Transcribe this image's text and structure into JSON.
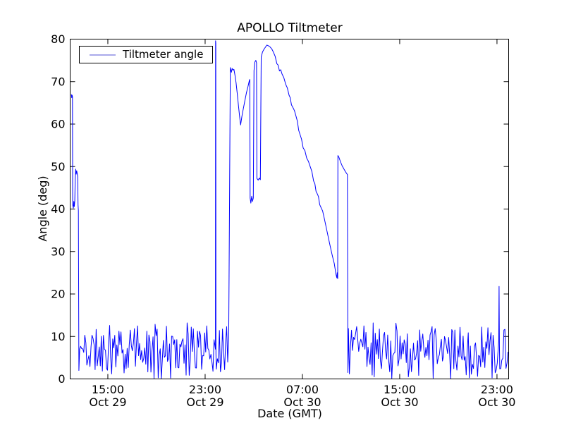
{
  "chart_data": {
    "type": "line",
    "title": "APOLLO Tiltmeter",
    "xlabel": "Date (GMT)",
    "ylabel": "Angle (deg)",
    "ylim": [
      0,
      80
    ],
    "y_ticks": [
      0,
      10,
      20,
      30,
      40,
      50,
      60,
      70,
      80
    ],
    "x_range_hours": [
      0,
      36.06
    ],
    "x_ticks": [
      {
        "t": 3.1,
        "time": "15:00",
        "date": "Oct 29"
      },
      {
        "t": 11.1,
        "time": "23:00",
        "date": "Oct 29"
      },
      {
        "t": 19.1,
        "time": "07:00",
        "date": "Oct 30"
      },
      {
        "t": 27.1,
        "time": "15:00",
        "date": "Oct 30"
      },
      {
        "t": 35.1,
        "time": "23:00",
        "date": "Oct 30"
      }
    ],
    "grid": false,
    "legend": {
      "label": "Tiltmeter angle",
      "position": "upper left",
      "sample_color": "#a9a9ea"
    },
    "line_color": "#0000ff",
    "frame_color": "#000000",
    "noise_band": {
      "min": 0,
      "max": 13.2,
      "step_hours": 0.085
    },
    "series_segments": [
      {
        "kind": "points",
        "name": "left-transient",
        "points": [
          [
            0.1,
            67.0
          ],
          [
            0.13,
            66.2
          ],
          [
            0.16,
            66.8
          ],
          [
            0.19,
            66.4
          ],
          [
            0.21,
            41.0
          ],
          [
            0.26,
            40.2
          ],
          [
            0.3,
            41.8
          ],
          [
            0.34,
            40.6
          ],
          [
            0.38,
            42.0
          ],
          [
            0.42,
            47.2
          ],
          [
            0.46,
            49.4
          ],
          [
            0.5,
            48.2
          ],
          [
            0.54,
            49.0
          ],
          [
            0.58,
            48.4
          ],
          [
            0.62,
            47.6
          ],
          [
            0.65,
            41.0
          ],
          [
            0.68,
            39.6
          ],
          [
            0.72,
            2.0
          ]
        ]
      },
      {
        "kind": "noise",
        "name": "quiet-band-1",
        "t0": 0.78,
        "t1": 11.9,
        "seed": 11
      },
      {
        "kind": "points",
        "name": "spike-1",
        "points": [
          [
            11.95,
            7.0
          ],
          [
            11.96,
            79.6
          ],
          [
            11.975,
            79.0
          ],
          [
            11.99,
            6.0
          ]
        ]
      },
      {
        "kind": "noise",
        "name": "quiet-band-2",
        "t0": 12.02,
        "t1": 13.1,
        "seed": 23
      },
      {
        "kind": "points",
        "name": "tilt-event",
        "jitter": 0.55,
        "points": [
          [
            13.17,
            73.3
          ],
          [
            13.26,
            72.2
          ],
          [
            13.32,
            73.1
          ],
          [
            13.4,
            72.7
          ],
          [
            13.47,
            72.9
          ],
          [
            13.55,
            71.6
          ],
          [
            13.64,
            69.8
          ],
          [
            13.74,
            67.2
          ],
          [
            13.84,
            64.4
          ],
          [
            13.94,
            61.6
          ],
          [
            14.02,
            59.8
          ],
          [
            14.12,
            61.8
          ],
          [
            14.24,
            63.6
          ],
          [
            14.36,
            65.4
          ],
          [
            14.5,
            67.4
          ],
          [
            14.62,
            68.8
          ],
          [
            14.73,
            70.2
          ],
          [
            14.77,
            70.5
          ],
          [
            14.8,
            42.6
          ],
          [
            14.86,
            41.4
          ],
          [
            14.93,
            43.0
          ],
          [
            15.0,
            41.8
          ],
          [
            15.06,
            42.6
          ],
          [
            15.12,
            72.6
          ],
          [
            15.19,
            74.6
          ],
          [
            15.27,
            75.0
          ],
          [
            15.33,
            74.4
          ],
          [
            15.36,
            47.2
          ],
          [
            15.46,
            46.8
          ],
          [
            15.56,
            47.3
          ],
          [
            15.64,
            46.9
          ],
          [
            15.71,
            75.8
          ],
          [
            15.82,
            77.0
          ],
          [
            15.94,
            77.6
          ],
          [
            16.06,
            78.1
          ],
          [
            16.18,
            78.6
          ],
          [
            16.32,
            78.4
          ],
          [
            16.46,
            78.1
          ],
          [
            16.58,
            77.7
          ],
          [
            16.72,
            76.9
          ],
          [
            17.0,
            74.2
          ],
          [
            17.42,
            71.8
          ],
          [
            17.72,
            69.4
          ],
          [
            18.0,
            66.8
          ],
          [
            18.3,
            64.0
          ],
          [
            18.58,
            61.8
          ],
          [
            18.9,
            57.6
          ],
          [
            19.16,
            54.4
          ],
          [
            19.45,
            52.0
          ],
          [
            19.74,
            50.0
          ],
          [
            20.02,
            46.6
          ],
          [
            20.32,
            43.6
          ],
          [
            20.62,
            40.4
          ],
          [
            20.9,
            37.8
          ],
          [
            21.12,
            34.8
          ],
          [
            21.36,
            31.6
          ],
          [
            21.56,
            29.0
          ],
          [
            21.72,
            27.2
          ],
          [
            21.86,
            24.6
          ],
          [
            21.93,
            23.8
          ],
          [
            21.96,
            25.0
          ],
          [
            22.0,
            23.6
          ],
          [
            22.02,
            52.6
          ],
          [
            22.1,
            52.2
          ],
          [
            22.22,
            51.2
          ],
          [
            22.36,
            50.2
          ],
          [
            22.52,
            49.4
          ],
          [
            22.66,
            48.7
          ],
          [
            22.8,
            48.1
          ],
          [
            22.84,
            1.5
          ]
        ]
      },
      {
        "kind": "noise",
        "name": "quiet-band-3",
        "t0": 22.88,
        "t1": 35.2,
        "seed": 37
      },
      {
        "kind": "points",
        "name": "spike-2",
        "points": [
          [
            35.24,
            9.0
          ],
          [
            35.27,
            21.8
          ],
          [
            35.3,
            8.0
          ]
        ]
      },
      {
        "kind": "noise",
        "name": "quiet-band-4",
        "t0": 35.33,
        "t1": 36.05,
        "seed": 51
      }
    ]
  }
}
